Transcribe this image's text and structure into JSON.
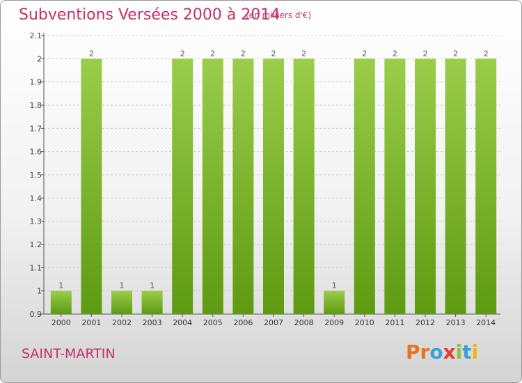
{
  "header": {
    "title": "Subventions Versées 2000 à 2014",
    "unit": "(en milliers d'€)"
  },
  "footer": {
    "commune": "SAINT-MARTIN",
    "brand_letters": [
      "P",
      "r",
      "o",
      "x",
      "i",
      "t",
      "i"
    ]
  },
  "colors": {
    "title": "#c4306a",
    "bar_light": "#9acd4a",
    "bar_dark": "#5e9a12",
    "grid": "#cccccc"
  },
  "chart_data": {
    "type": "bar",
    "title": "Subventions Versées 2000 à 2014",
    "categories": [
      "2000",
      "2001",
      "2002",
      "2003",
      "2004",
      "2005",
      "2006",
      "2007",
      "2008",
      "2009",
      "2010",
      "2011",
      "2012",
      "2013",
      "2014"
    ],
    "values": [
      1,
      2,
      1,
      1,
      2,
      2,
      2,
      2,
      2,
      1,
      2,
      2,
      2,
      2,
      2
    ],
    "data_labels": [
      "1",
      "2",
      "1",
      "1",
      "2",
      "2",
      "2",
      "2",
      "2",
      "1",
      "2",
      "2",
      "2",
      "2",
      "2"
    ],
    "yticks": [
      "0.9",
      "1",
      "1.1",
      "1.2",
      "1.3",
      "1.4",
      "1.5",
      "1.6",
      "1.7",
      "1.8",
      "1.9",
      "2",
      "2.1"
    ],
    "ylim": [
      0.9,
      2.1
    ],
    "grid": true,
    "xlabel": "",
    "ylabel": ""
  }
}
